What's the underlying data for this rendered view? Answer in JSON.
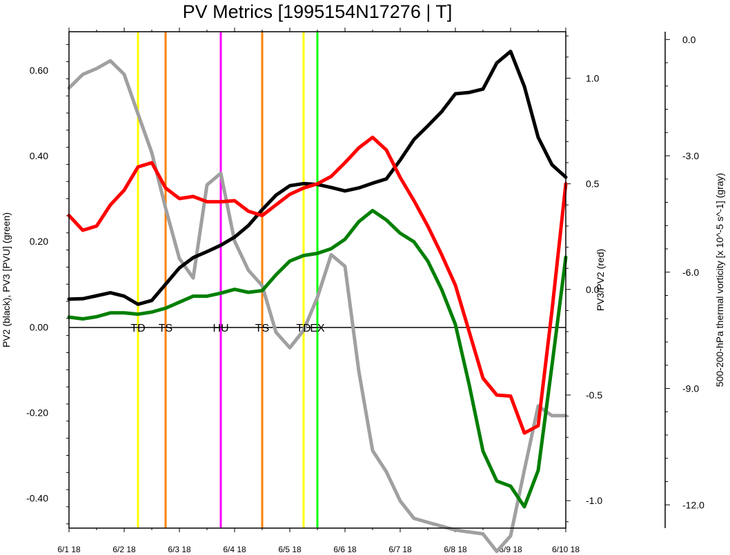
{
  "chart_data": {
    "type": "line",
    "title": "PV Metrics [1995154N17276 | T]",
    "left_axis_label": "PV2 (black), PV3 [PVU] (green)",
    "right_axis_label": "PV3/PV2 (red)",
    "far_right_axis_label": "500-200-hPa thermal vorticity [x 10^-5 s^-1] (gray)",
    "left_ylim": [
      -0.47,
      0.69
    ],
    "right_ylim": [
      -1.13,
      1.22
    ],
    "far_right_ylim": [
      -12.6,
      0.2
    ],
    "xlim": [
      0,
      9
    ],
    "x_tick_values": [
      0,
      1,
      2,
      3,
      4,
      5,
      6,
      7,
      8,
      9
    ],
    "x_tick_labels": [
      "6/1 18",
      "6/2 18",
      "6/3 18",
      "6/4 18",
      "6/5 18",
      "6/6 18",
      "6/7 18",
      "6/8 18",
      "6/9 18",
      "6/10 18"
    ],
    "left_ticks": [
      {
        "v": 0.6,
        "label": "0.60"
      },
      {
        "v": 0.4,
        "label": "0.40"
      },
      {
        "v": 0.2,
        "label": "0.20"
      },
      {
        "v": 0,
        "label": "0.00"
      },
      {
        "v": -0.2,
        "label": "-0.20"
      },
      {
        "v": -0.4,
        "label": "-0.40"
      }
    ],
    "right_ticks": [
      {
        "v": 1.0,
        "label": "1.0"
      },
      {
        "v": 0.5,
        "label": "0.5"
      },
      {
        "v": 0,
        "label": "0.0"
      },
      {
        "v": -0.5,
        "label": "-0.5"
      },
      {
        "v": -1.0,
        "label": "-1.0"
      }
    ],
    "far_right_ticks": [
      {
        "v": 0,
        "label": "0.0"
      },
      {
        "v": -3,
        "label": "-3.0"
      },
      {
        "v": -6,
        "label": "-6.0"
      },
      {
        "v": -9,
        "label": "-9.0"
      },
      {
        "v": -12,
        "label": "-12.0"
      }
    ],
    "x": [
      0,
      0.25,
      0.5,
      0.75,
      1,
      1.25,
      1.5,
      1.75,
      2,
      2.25,
      2.5,
      2.75,
      3,
      3.25,
      3.5,
      3.75,
      4,
      4.25,
      4.5,
      4.75,
      5,
      5.25,
      5.5,
      5.75,
      6,
      6.25,
      6.5,
      6.75,
      7,
      7.25,
      7.5,
      7.75,
      8,
      8.25,
      8.5,
      8.75,
      9
    ],
    "series": [
      {
        "axis": "left",
        "color": "#000000",
        "values": [
          0.065,
          0.066,
          0.073,
          0.08,
          0.072,
          0.053,
          0.062,
          0.1,
          0.138,
          0.162,
          0.176,
          0.191,
          0.21,
          0.237,
          0.274,
          0.308,
          0.33,
          0.335,
          0.333,
          0.326,
          0.318,
          0.325,
          0.336,
          0.346,
          0.39,
          0.438,
          0.47,
          0.503,
          0.545,
          0.548,
          0.556,
          0.617,
          0.644,
          0.562,
          0.443,
          0.379,
          0.35
        ]
      },
      {
        "axis": "left",
        "color": "#007f00",
        "values": [
          0.023,
          0.019,
          0.024,
          0.033,
          0.033,
          0.03,
          0.035,
          0.044,
          0.058,
          0.072,
          0.072,
          0.079,
          0.088,
          0.081,
          0.085,
          0.122,
          0.154,
          0.167,
          0.172,
          0.183,
          0.205,
          0.246,
          0.272,
          0.25,
          0.219,
          0.199,
          0.154,
          0.088,
          0.006,
          -0.135,
          -0.29,
          -0.36,
          -0.372,
          -0.42,
          -0.335,
          -0.09,
          0.163
        ]
      },
      {
        "axis": "right",
        "color": "#ff0000",
        "values": [
          0.35,
          0.28,
          0.3,
          0.4,
          0.47,
          0.58,
          0.6,
          0.48,
          0.43,
          0.44,
          0.415,
          0.415,
          0.42,
          0.37,
          0.35,
          0.4,
          0.45,
          0.48,
          0.5,
          0.535,
          0.6,
          0.67,
          0.72,
          0.66,
          0.53,
          0.42,
          0.3,
          0.165,
          0.02,
          -0.2,
          -0.42,
          -0.5,
          -0.505,
          -0.68,
          -0.645,
          -0.1,
          0.5
        ]
      },
      {
        "axis": "far",
        "color": "#a0a0a0",
        "values": [
          -1.25,
          -0.9,
          -0.75,
          -0.55,
          -0.9,
          -1.92,
          -2.92,
          -4.35,
          -5.65,
          -6.15,
          -3.75,
          -3.45,
          -5.2,
          -5.95,
          -6.35,
          -7.55,
          -7.95,
          -7.5,
          -6.65,
          -5.55,
          -5.85,
          -8.55,
          -10.6,
          -11.15,
          -11.9,
          -12.35,
          -12.45,
          -12.55,
          -12.65,
          -12.7,
          -12.75,
          -13.2,
          -12.8,
          -11.1,
          -9.45,
          -9.7,
          -9.7
        ]
      }
    ],
    "events": [
      {
        "x": 1.25,
        "label": "TD",
        "color": "#ffff00"
      },
      {
        "x": 1.75,
        "label": "TS",
        "color": "#ff8000"
      },
      {
        "x": 2.75,
        "label": "HU",
        "color": "#ff00ff"
      },
      {
        "x": 3.5,
        "label": "TS",
        "color": "#ff8000"
      },
      {
        "x": 4.25,
        "label": "TD",
        "color": "#ffff00"
      },
      {
        "x": 4.5,
        "label": "EX",
        "color": "#00ff00"
      }
    ]
  }
}
